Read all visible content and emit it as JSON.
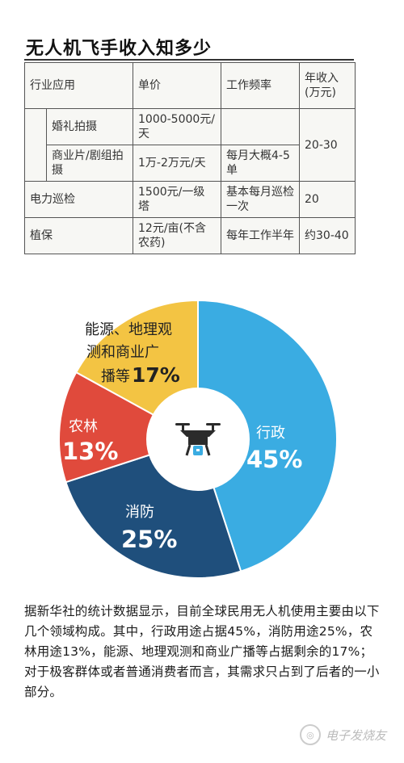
{
  "title": "无人机飞手收入知多少",
  "table": {
    "headers": [
      "行业应用",
      "单价",
      "工作频率",
      "年收入(万元)"
    ],
    "rows": [
      {
        "industry": "婚礼拍摄",
        "price": "1000-5000元/天",
        "frequency": "",
        "income": "20-30"
      },
      {
        "industry": "商业片/剧组拍摄",
        "price": "1万-2万元/天",
        "frequency": "每月大概4-5单",
        "income": ""
      },
      {
        "industry": "电力巡检",
        "price": "1500元/一级塔",
        "frequency": "基本每月巡检一次",
        "income": "20"
      },
      {
        "industry": "植保",
        "price": "12元/亩(不含农药)",
        "frequency": "每年工作半年",
        "income": "约30-40"
      }
    ]
  },
  "chart_data": {
    "type": "pie",
    "categories": [
      "行政",
      "消防",
      "农林",
      "能源、地理观测和商业广播等"
    ],
    "values": [
      45,
      25,
      13,
      17
    ],
    "value_labels": [
      "45%",
      "25%",
      "13%",
      "17%"
    ],
    "colors": [
      "#3aace2",
      "#1f4f7c",
      "#e04a3c",
      "#f3c443"
    ],
    "label_colors": [
      "#ffffff",
      "#ffffff",
      "#ffffff",
      "#222222"
    ],
    "donut": true
  },
  "pie_labels": {
    "admin_name": "行政",
    "admin_value": "45%",
    "fire_name": "消防",
    "fire_value": "25%",
    "agri_name": "农林",
    "agri_value": "13%",
    "energy_line1": "能源、地理观",
    "energy_line2": "测和商业广",
    "energy_line3_prefix": "播等",
    "energy_value": "17%"
  },
  "center_icon": "drone-icon",
  "paragraph": "据新华社的统计数据显示，目前全球民用无人机使用主要由以下几个领域构成。其中，行政用途占据45%，消防用途25%，农林用途13%，能源、地理观测和商业广播等占据剩余的17%；对于极客群体或者普通消费者而言，其需求只占到了后者的一小部分。",
  "watermark": "电子发烧友"
}
